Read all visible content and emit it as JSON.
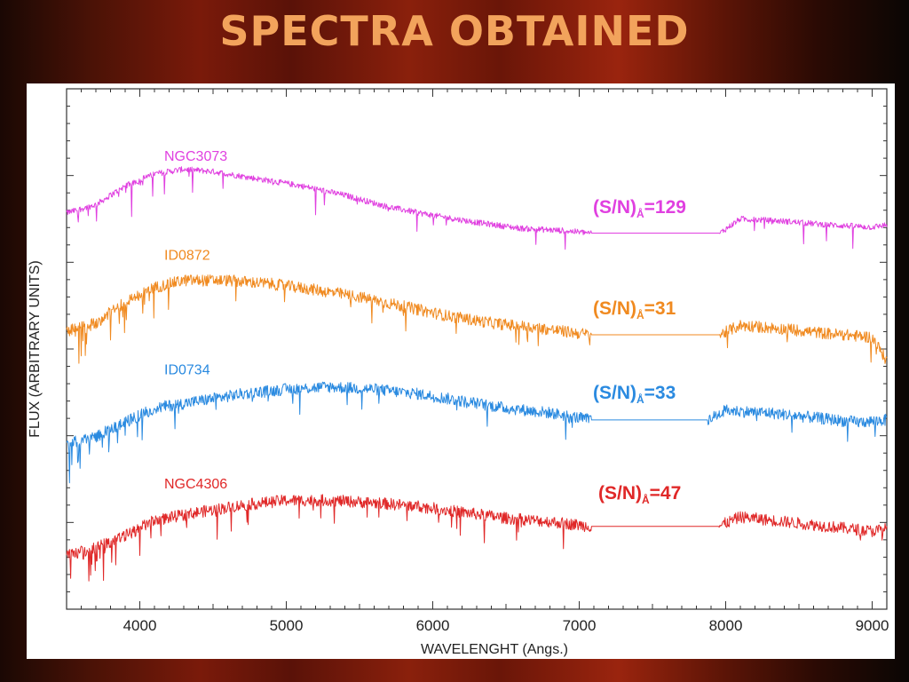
{
  "slide": {
    "title": "SPECTRA OBTAINED"
  },
  "chart_data": {
    "type": "line",
    "xlabel": "WAVELENGHT (Angs.)",
    "ylabel": "FLUX (ARBITRARY UNITS)",
    "xlim": [
      3500,
      9100
    ],
    "xticks": [
      4000,
      5000,
      6000,
      7000,
      8000,
      9000
    ],
    "xtick_labels": [
      "4000",
      "5000",
      "6000",
      "7000",
      "8000",
      "9000"
    ],
    "y_tick_labels_shown": false,
    "grid": false,
    "series": [
      {
        "name": "NGC3073",
        "color": "#e040e0",
        "snr_text": "(S/N)",
        "snr_sub": "Å",
        "snr_value": "=129",
        "gap": [
          7080,
          7960
        ],
        "x": [
          3500,
          3700,
          3900,
          4100,
          4300,
          4500,
          4700,
          4900,
          5100,
          5400,
          5700,
          6000,
          6300,
          6600,
          6900,
          7080,
          7960,
          8100,
          8400,
          8700,
          9000,
          9100
        ],
        "y": [
          3.55,
          3.62,
          3.78,
          3.88,
          3.92,
          3.9,
          3.86,
          3.82,
          3.78,
          3.7,
          3.6,
          3.53,
          3.47,
          3.42,
          3.4,
          3.38,
          3.38,
          3.5,
          3.48,
          3.45,
          3.43,
          3.45
        ]
      },
      {
        "name": "ID0872",
        "color": "#f08a20",
        "snr_text": "(S/N)",
        "snr_sub": "Å",
        "snr_value": "=31",
        "gap": [
          7080,
          7960
        ],
        "x": [
          3500,
          3700,
          3900,
          4100,
          4300,
          4600,
          4900,
          5200,
          5500,
          5800,
          6100,
          6400,
          6700,
          6950,
          7080,
          7960,
          8100,
          8400,
          8700,
          9000,
          9100
        ],
        "y": [
          2.55,
          2.62,
          2.8,
          2.92,
          2.98,
          2.98,
          2.95,
          2.9,
          2.84,
          2.76,
          2.68,
          2.62,
          2.58,
          2.54,
          2.52,
          2.52,
          2.6,
          2.57,
          2.53,
          2.5,
          2.3
        ]
      },
      {
        "name": "ID0734",
        "color": "#2a8ae0",
        "snr_text": "(S/N)",
        "snr_sub": "Å",
        "snr_value": "=33",
        "gap": [
          7080,
          7880
        ],
        "x": [
          3500,
          3700,
          3900,
          4100,
          4400,
          4700,
          5000,
          5300,
          5600,
          5900,
          6200,
          6500,
          6800,
          7080,
          7880,
          8000,
          8300,
          8600,
          8900,
          9100
        ],
        "y": [
          1.6,
          1.66,
          1.78,
          1.9,
          1.96,
          2.02,
          2.06,
          2.08,
          2.06,
          2.02,
          1.96,
          1.9,
          1.86,
          1.8,
          1.8,
          1.88,
          1.86,
          1.82,
          1.78,
          1.8
        ]
      },
      {
        "name": "NGC4306",
        "color": "#e02828",
        "snr_text": "(S/N)",
        "snr_sub": "Å",
        "snr_value": "=47",
        "gap": [
          7080,
          7950
        ],
        "x": [
          3500,
          3700,
          3900,
          4100,
          4400,
          4700,
          5000,
          5300,
          5600,
          5900,
          6200,
          6500,
          6800,
          7080,
          7950,
          8100,
          8400,
          8700,
          9000,
          9100
        ],
        "y": [
          0.65,
          0.72,
          0.82,
          0.95,
          1.02,
          1.08,
          1.12,
          1.12,
          1.1,
          1.07,
          1.02,
          0.97,
          0.94,
          0.9,
          0.9,
          0.98,
          0.94,
          0.9,
          0.86,
          0.88
        ]
      }
    ]
  }
}
